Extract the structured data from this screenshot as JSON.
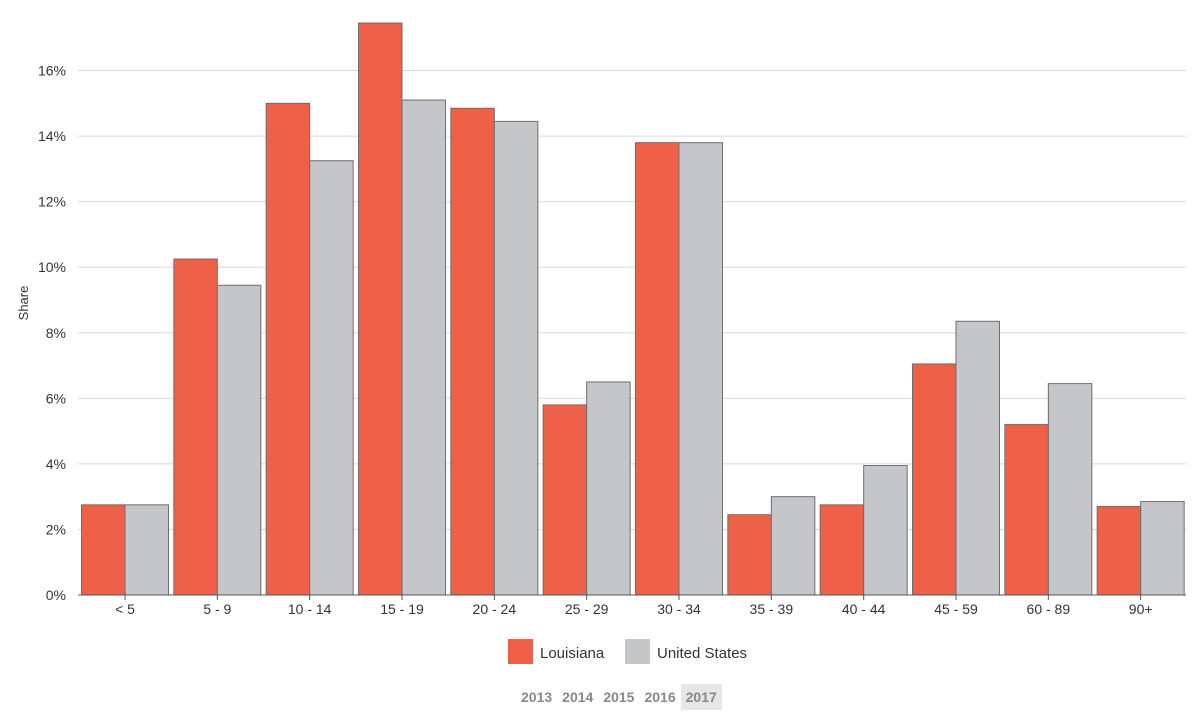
{
  "chart_data": {
    "type": "bar",
    "ylabel": "Share",
    "xlabel": "",
    "ylim": [
      0,
      18
    ],
    "yticks": [
      0,
      2,
      4,
      6,
      8,
      10,
      12,
      14,
      16
    ],
    "ytick_labels": [
      "0%",
      "2%",
      "4%",
      "6%",
      "8%",
      "10%",
      "12%",
      "14%",
      "16%"
    ],
    "grid": true,
    "legend_position": "bottom",
    "categories": [
      "< 5",
      "5 - 9",
      "10 - 14",
      "15 - 19",
      "20 - 24",
      "25 - 29",
      "30 - 34",
      "35 - 39",
      "40 - 44",
      "45 - 59",
      "60 - 89",
      "90+"
    ],
    "series": [
      {
        "name": "Louisiana",
        "color": "#ee6047",
        "values": [
          2.75,
          10.25,
          15.0,
          17.45,
          14.85,
          5.8,
          13.8,
          2.45,
          2.75,
          7.05,
          5.2,
          2.7
        ]
      },
      {
        "name": "United States",
        "color": "#c5c6ca",
        "values": [
          2.75,
          9.45,
          13.25,
          15.1,
          14.45,
          6.5,
          13.8,
          3.0,
          3.95,
          8.35,
          6.45,
          2.85
        ]
      }
    ]
  },
  "years": {
    "options": [
      "2013",
      "2014",
      "2015",
      "2016",
      "2017"
    ],
    "selected": "2017"
  }
}
